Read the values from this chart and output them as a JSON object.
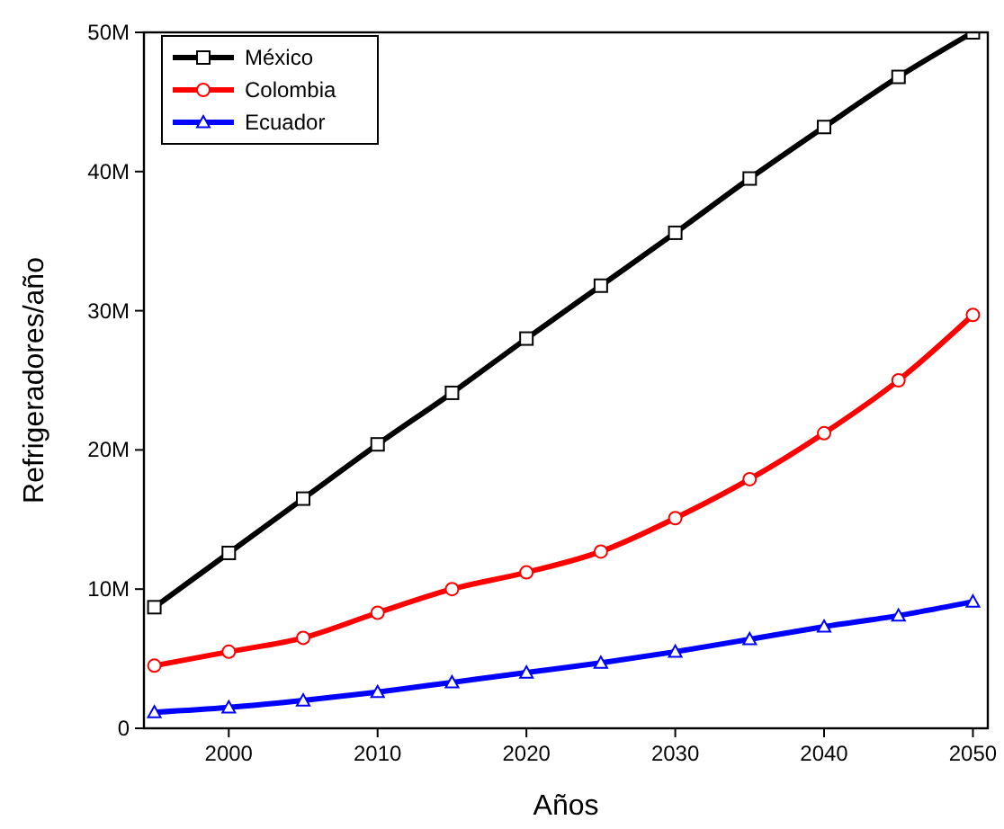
{
  "chart_data": {
    "type": "line",
    "xlabel": "Años",
    "ylabel": "Refrigeradores/año",
    "x": [
      1995,
      2000,
      2005,
      2010,
      2015,
      2020,
      2025,
      2030,
      2035,
      2040,
      2045,
      2050
    ],
    "xlim": [
      1994.3,
      2051
    ],
    "xticks": [
      2000,
      2010,
      2020,
      2030,
      2040,
      2050
    ],
    "ylim": [
      0,
      50
    ],
    "yticks": [
      0,
      {
        "value": 10,
        "label": "10M"
      },
      {
        "value": 20,
        "label": "20M"
      },
      {
        "value": 30,
        "label": "30M"
      },
      {
        "value": 40,
        "label": "40M"
      },
      {
        "value": 50,
        "label": "50M"
      }
    ],
    "grid": false,
    "legend": "top left",
    "series": [
      {
        "name": "México",
        "color": "#000000",
        "marker": "square",
        "values": [
          8.7,
          12.6,
          16.5,
          20.4,
          24.1,
          28.0,
          31.8,
          35.6,
          39.5,
          43.2,
          46.8,
          50
        ]
      },
      {
        "name": "Colombia",
        "color": "#ff0000",
        "marker": "circle",
        "values": [
          4.5,
          5.5,
          6.5,
          8.3,
          10.0,
          11.2,
          12.7,
          15.1,
          17.9,
          21.2,
          25.0,
          29.7
        ]
      },
      {
        "name": "Ecuador",
        "color": "#0000ff",
        "marker": "triangle",
        "values": [
          1.15,
          1.5,
          2.0,
          2.6,
          3.3,
          4.0,
          4.7,
          5.5,
          6.4,
          7.3,
          8.1,
          9.1
        ]
      }
    ]
  }
}
